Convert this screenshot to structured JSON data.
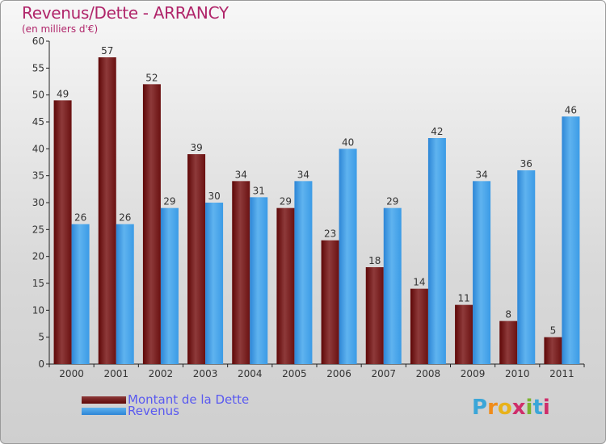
{
  "header": {
    "title": "Revenus/Dette - ARRANCY",
    "subtitle": "(en milliers d'€)"
  },
  "legend": {
    "items": [
      {
        "label": "Montant de la Dette",
        "color": "#6b0d0d"
      },
      {
        "label": "Revenus",
        "color": "#3c9ee6"
      }
    ]
  },
  "logo": {
    "text": "Proxiti",
    "letters": [
      "P",
      "r",
      "o",
      "x",
      "i",
      "t",
      "i"
    ]
  },
  "colors": {
    "title": "#b0256a",
    "debt_dark": "#5e0707",
    "debt_light": "#8e3a3a",
    "revenue_dark": "#2d86d6",
    "revenue_light": "#5fb3ef"
  },
  "chart_data": {
    "type": "bar",
    "title": "Revenus/Dette - ARRANCY",
    "subtitle": "(en milliers d'€)",
    "categories": [
      "2000",
      "2001",
      "2002",
      "2003",
      "2004",
      "2005",
      "2006",
      "2007",
      "2008",
      "2009",
      "2010",
      "2011"
    ],
    "series": [
      {
        "name": "Montant de la Dette",
        "values": [
          49,
          57,
          52,
          39,
          34,
          29,
          23,
          18,
          14,
          11,
          8,
          5
        ]
      },
      {
        "name": "Revenus",
        "values": [
          26,
          26,
          29,
          30,
          31,
          34,
          40,
          29,
          42,
          34,
          36,
          46
        ]
      }
    ],
    "ylim": [
      0,
      60
    ],
    "yticks": [
      0,
      5,
      10,
      15,
      20,
      25,
      30,
      35,
      40,
      45,
      50,
      55,
      60
    ],
    "grid": false,
    "legend_position": "bottom-left"
  }
}
